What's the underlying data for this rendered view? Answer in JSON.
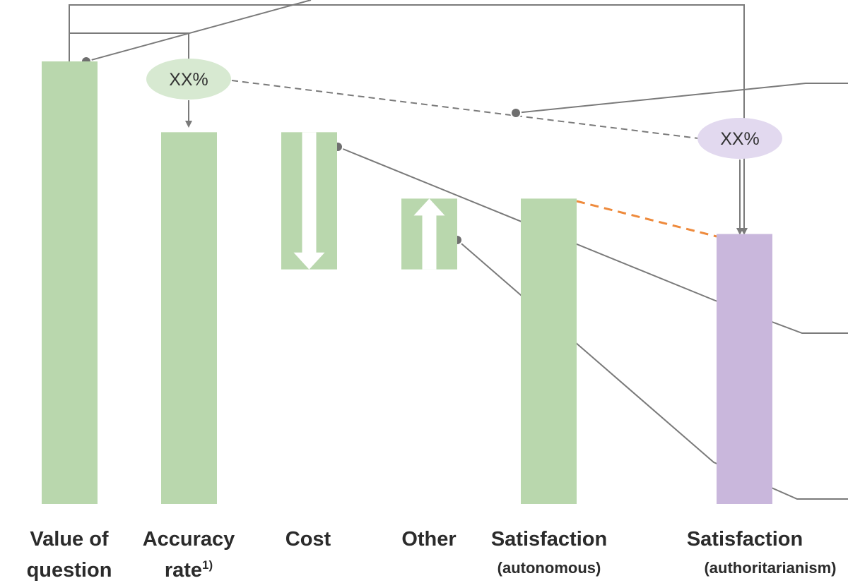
{
  "chart_data": {
    "type": "bar",
    "categories": [
      {
        "label": "Value of",
        "label2": "question",
        "sup": ""
      },
      {
        "label": "Accuracy",
        "label2": "rate",
        "sup": "1)"
      },
      {
        "label": "Cost",
        "label2": "",
        "sup": ""
      },
      {
        "label": "Other",
        "label2": "",
        "sup": ""
      },
      {
        "label": "Satisfaction",
        "label2": "(autonomous)",
        "sup": ""
      },
      {
        "label": "Satisfaction",
        "label2": "(authoritarianism)",
        "sup": ""
      }
    ],
    "bars": [
      {
        "base": 0,
        "top": 100,
        "color": "#b9d7ad",
        "arrow": "none"
      },
      {
        "base": 0,
        "top": 84,
        "color": "#b9d7ad",
        "arrow": "none"
      },
      {
        "base": 53,
        "top": 84,
        "color": "#b9d7ad",
        "arrow": "down"
      },
      {
        "base": 53,
        "top": 69,
        "color": "#b9d7ad",
        "arrow": "up"
      },
      {
        "base": 0,
        "top": 69,
        "color": "#b9d7ad",
        "arrow": "none"
      },
      {
        "base": 0,
        "top": 61,
        "color": "#c9b7dc",
        "arrow": "none"
      }
    ],
    "annotations": [
      {
        "text": "XX%",
        "color": "#d7e9d1"
      },
      {
        "text": "XX%",
        "color": "#e2d9ef"
      }
    ],
    "ylim": [
      0,
      100
    ],
    "title": "",
    "xlabel": "",
    "ylabel": ""
  },
  "colors": {
    "green": "#b9d7ad",
    "purple": "#c9b7dc",
    "connector": "#7a7a7a",
    "orange": "#ee8a3c"
  }
}
